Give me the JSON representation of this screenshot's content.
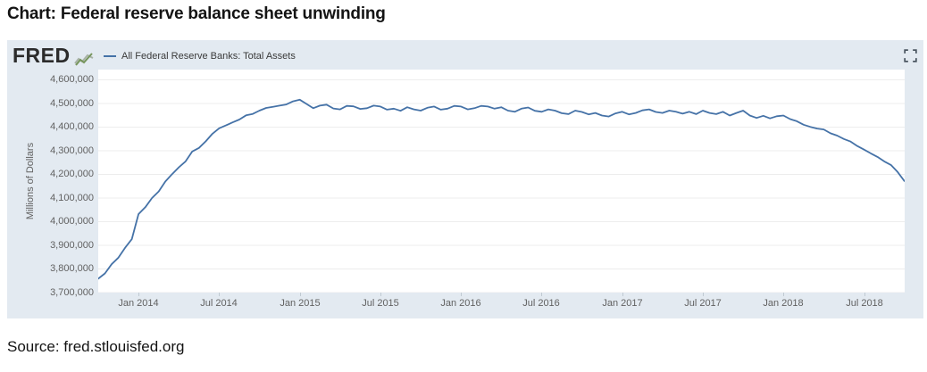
{
  "page": {
    "title": "Chart: Federal reserve balance sheet unwinding",
    "source": "Source: fred.stlouisfed.org"
  },
  "chart": {
    "brand": "FRED",
    "legend_label": "All Federal Reserve Banks: Total Assets",
    "line_color": "#4572a7",
    "card_background": "#e3eaf1",
    "plot_background": "#ffffff",
    "gridline_color": "#ededed",
    "tick_text_color": "#616161",
    "icons": {
      "logo_sparkline": "sparkline-chart-icon",
      "expand": "fullscreen-expand-icon"
    }
  },
  "chart_data": {
    "type": "line",
    "title": "All Federal Reserve Banks: Total Assets",
    "series_name": "All Federal Reserve Banks: Total Assets",
    "xlabel": "",
    "ylabel": "Millions of Dollars",
    "ylim": [
      3700000,
      4600000
    ],
    "xlim": [
      2013.75,
      2018.752
    ],
    "grid": "horizontal-only",
    "legend_position": "top-left",
    "y_ticks": [
      3700000,
      3800000,
      3900000,
      4000000,
      4100000,
      4200000,
      4300000,
      4400000,
      4500000,
      4600000
    ],
    "x_ticks": [
      {
        "x": 2014.0,
        "label": "Jan 2014"
      },
      {
        "x": 2014.5,
        "label": "Jul 2014"
      },
      {
        "x": 2015.0,
        "label": "Jan 2015"
      },
      {
        "x": 2015.5,
        "label": "Jul 2015"
      },
      {
        "x": 2016.0,
        "label": "Jan 2016"
      },
      {
        "x": 2016.5,
        "label": "Jul 2016"
      },
      {
        "x": 2017.0,
        "label": "Jan 2017"
      },
      {
        "x": 2017.5,
        "label": "Jul 2017"
      },
      {
        "x": 2018.0,
        "label": "Jan 2018"
      },
      {
        "x": 2018.5,
        "label": "Jul 2018"
      }
    ],
    "x_start": 2013.75,
    "x_step": 0.0416667,
    "values": [
      3759000,
      3781000,
      3820000,
      3848000,
      3890000,
      3926000,
      4032000,
      4061000,
      4100000,
      4128000,
      4170000,
      4201000,
      4230000,
      4255000,
      4297000,
      4312000,
      4340000,
      4372000,
      4395000,
      4407000,
      4420000,
      4432000,
      4450000,
      4456000,
      4470000,
      4481000,
      4486000,
      4491000,
      4496000,
      4509000,
      4516000,
      4498000,
      4480000,
      4491000,
      4495000,
      4479000,
      4475000,
      4490000,
      4488000,
      4477000,
      4480000,
      4491000,
      4487000,
      4474000,
      4478000,
      4469000,
      4484000,
      4475000,
      4470000,
      4482000,
      4487000,
      4474000,
      4478000,
      4490000,
      4487000,
      4475000,
      4480000,
      4490000,
      4487000,
      4478000,
      4484000,
      4470000,
      4465000,
      4478000,
      4483000,
      4469000,
      4465000,
      4475000,
      4470000,
      4459000,
      4455000,
      4470000,
      4464000,
      4454000,
      4460000,
      4449000,
      4445000,
      4458000,
      4465000,
      4454000,
      4460000,
      4471000,
      4475000,
      4464000,
      4460000,
      4470000,
      4465000,
      4457000,
      4465000,
      4455000,
      4470000,
      4460000,
      4455000,
      4465000,
      4449000,
      4460000,
      4470000,
      4449000,
      4439000,
      4448000,
      4437000,
      4446000,
      4449000,
      4434000,
      4425000,
      4410000,
      4401000,
      4394000,
      4390000,
      4374000,
      4364000,
      4350000,
      4339000,
      4320000,
      4305000,
      4289000,
      4274000,
      4255000,
      4240000,
      4210000,
      4172000
    ]
  }
}
